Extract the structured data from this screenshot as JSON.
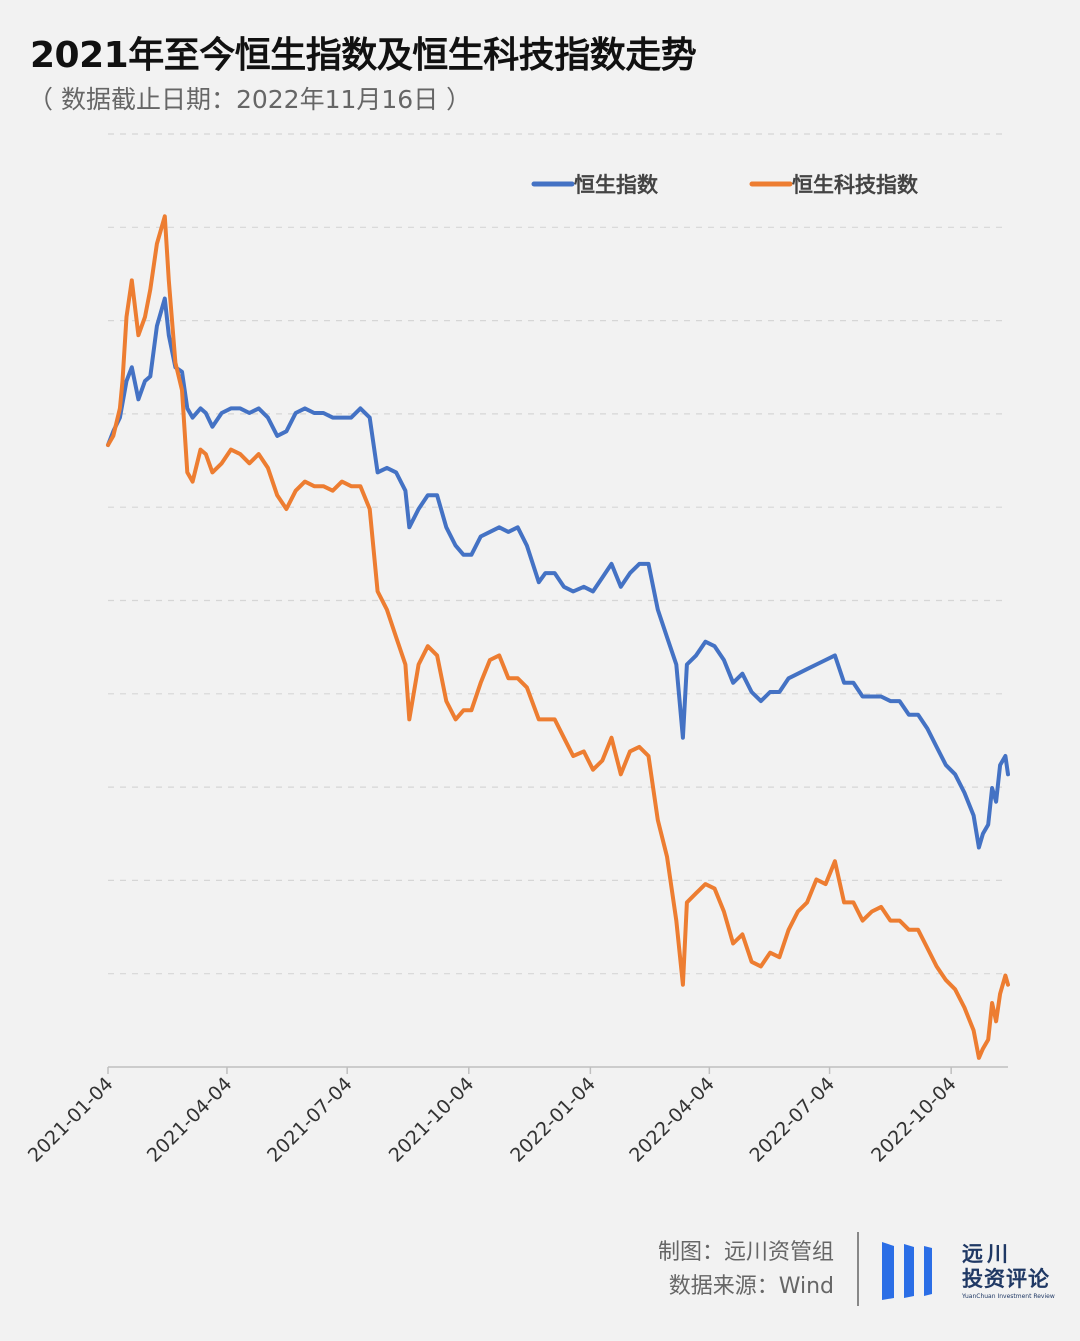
{
  "header": {
    "title": "2021年至今恒生指数及恒生科技指数走势",
    "subtitle": "（ 数据截止日期：2022年11月16日 ）"
  },
  "footer": {
    "maker": "制图：远川资管组",
    "source": "数据来源：Wind"
  },
  "brand": {
    "line1": "远川",
    "line2": "投资评论",
    "line3": "YuanChuan Investment Review",
    "color": "#2b6ee6"
  },
  "chart_data": {
    "type": "line",
    "title": "2021年至今恒生指数及恒生科技指数走势",
    "xlabel": "",
    "ylabel": "",
    "x_range": [
      "2021-01-04",
      "2022-11-16"
    ],
    "x_ticks": [
      "2021-01-04",
      "2021-04-04",
      "2021-07-04",
      "2021-10-04",
      "2022-01-04",
      "2022-04-04",
      "2022-07-04",
      "2022-10-04"
    ],
    "y_range": [
      0.32,
      1.34
    ],
    "y_gridlines": 10,
    "y_axis_labels": "none",
    "grid": "horizontal-dashed",
    "legend": "top-right",
    "series": [
      {
        "name": "恒生指数",
        "color": "#4472c4",
        "points": [
          [
            "2021-01-04",
            1.0
          ],
          [
            "2021-01-08",
            1.015
          ],
          [
            "2021-01-13",
            1.03
          ],
          [
            "2021-01-18",
            1.07
          ],
          [
            "2021-01-22",
            1.085
          ],
          [
            "2021-01-27",
            1.05
          ],
          [
            "2021-02-01",
            1.07
          ],
          [
            "2021-02-05",
            1.075
          ],
          [
            "2021-02-10",
            1.13
          ],
          [
            "2021-02-16",
            1.16
          ],
          [
            "2021-02-19",
            1.12
          ],
          [
            "2021-02-24",
            1.085
          ],
          [
            "2021-03-01",
            1.08
          ],
          [
            "2021-03-05",
            1.04
          ],
          [
            "2021-03-09",
            1.03
          ],
          [
            "2021-03-15",
            1.04
          ],
          [
            "2021-03-19",
            1.035
          ],
          [
            "2021-03-24",
            1.02
          ],
          [
            "2021-03-31",
            1.035
          ],
          [
            "2021-04-07",
            1.04
          ],
          [
            "2021-04-14",
            1.04
          ],
          [
            "2021-04-21",
            1.035
          ],
          [
            "2021-04-28",
            1.04
          ],
          [
            "2021-05-05",
            1.03
          ],
          [
            "2021-05-12",
            1.01
          ],
          [
            "2021-05-19",
            1.015
          ],
          [
            "2021-05-26",
            1.035
          ],
          [
            "2021-06-02",
            1.04
          ],
          [
            "2021-06-09",
            1.035
          ],
          [
            "2021-06-16",
            1.035
          ],
          [
            "2021-06-23",
            1.03
          ],
          [
            "2021-06-30",
            1.03
          ],
          [
            "2021-07-07",
            1.03
          ],
          [
            "2021-07-14",
            1.04
          ],
          [
            "2021-07-21",
            1.03
          ],
          [
            "2021-07-27",
            0.97
          ],
          [
            "2021-08-03",
            0.975
          ],
          [
            "2021-08-10",
            0.97
          ],
          [
            "2021-08-17",
            0.95
          ],
          [
            "2021-08-20",
            0.91
          ],
          [
            "2021-08-27",
            0.93
          ],
          [
            "2021-09-03",
            0.945
          ],
          [
            "2021-09-10",
            0.945
          ],
          [
            "2021-09-17",
            0.91
          ],
          [
            "2021-09-24",
            0.89
          ],
          [
            "2021-09-30",
            0.88
          ],
          [
            "2021-10-06",
            0.88
          ],
          [
            "2021-10-13",
            0.9
          ],
          [
            "2021-10-20",
            0.905
          ],
          [
            "2021-10-27",
            0.91
          ],
          [
            "2021-11-03",
            0.905
          ],
          [
            "2021-11-10",
            0.91
          ],
          [
            "2021-11-17",
            0.89
          ],
          [
            "2021-11-26",
            0.85
          ],
          [
            "2021-12-01",
            0.86
          ],
          [
            "2021-12-08",
            0.86
          ],
          [
            "2021-12-15",
            0.845
          ],
          [
            "2021-12-22",
            0.84
          ],
          [
            "2021-12-30",
            0.845
          ],
          [
            "2022-01-06",
            0.84
          ],
          [
            "2022-01-13",
            0.855
          ],
          [
            "2022-01-20",
            0.87
          ],
          [
            "2022-01-27",
            0.845
          ],
          [
            "2022-02-03",
            0.86
          ],
          [
            "2022-02-10",
            0.87
          ],
          [
            "2022-02-17",
            0.87
          ],
          [
            "2022-02-24",
            0.82
          ],
          [
            "2022-03-03",
            0.79
          ],
          [
            "2022-03-10",
            0.76
          ],
          [
            "2022-03-15",
            0.68
          ],
          [
            "2022-03-18",
            0.76
          ],
          [
            "2022-03-25",
            0.77
          ],
          [
            "2022-04-01",
            0.785
          ],
          [
            "2022-04-08",
            0.78
          ],
          [
            "2022-04-15",
            0.765
          ],
          [
            "2022-04-22",
            0.74
          ],
          [
            "2022-04-29",
            0.75
          ],
          [
            "2022-05-06",
            0.73
          ],
          [
            "2022-05-13",
            0.72
          ],
          [
            "2022-05-20",
            0.73
          ],
          [
            "2022-05-27",
            0.73
          ],
          [
            "2022-06-03",
            0.745
          ],
          [
            "2022-06-10",
            0.75
          ],
          [
            "2022-06-17",
            0.755
          ],
          [
            "2022-06-24",
            0.76
          ],
          [
            "2022-07-01",
            0.765
          ],
          [
            "2022-07-08",
            0.77
          ],
          [
            "2022-07-15",
            0.74
          ],
          [
            "2022-07-22",
            0.74
          ],
          [
            "2022-07-29",
            0.725
          ],
          [
            "2022-08-05",
            0.725
          ],
          [
            "2022-08-12",
            0.725
          ],
          [
            "2022-08-19",
            0.72
          ],
          [
            "2022-08-26",
            0.72
          ],
          [
            "2022-09-02",
            0.705
          ],
          [
            "2022-09-09",
            0.705
          ],
          [
            "2022-09-16",
            0.69
          ],
          [
            "2022-09-23",
            0.67
          ],
          [
            "2022-09-30",
            0.65
          ],
          [
            "2022-10-07",
            0.64
          ],
          [
            "2022-10-14",
            0.62
          ],
          [
            "2022-10-21",
            0.595
          ],
          [
            "2022-10-25",
            0.56
          ],
          [
            "2022-10-28",
            0.575
          ],
          [
            "2022-11-01",
            0.585
          ],
          [
            "2022-11-04",
            0.625
          ],
          [
            "2022-11-07",
            0.61
          ],
          [
            "2022-11-10",
            0.65
          ],
          [
            "2022-11-14",
            0.66
          ],
          [
            "2022-11-16",
            0.64
          ]
        ]
      },
      {
        "name": "恒生科技指数",
        "color": "#ed7d31",
        "points": [
          [
            "2021-01-04",
            1.0
          ],
          [
            "2021-01-08",
            1.01
          ],
          [
            "2021-01-13",
            1.04
          ],
          [
            "2021-01-15",
            1.07
          ],
          [
            "2021-01-18",
            1.14
          ],
          [
            "2021-01-22",
            1.18
          ],
          [
            "2021-01-27",
            1.12
          ],
          [
            "2021-02-01",
            1.14
          ],
          [
            "2021-02-05",
            1.17
          ],
          [
            "2021-02-10",
            1.22
          ],
          [
            "2021-02-16",
            1.25
          ],
          [
            "2021-02-19",
            1.18
          ],
          [
            "2021-02-24",
            1.09
          ],
          [
            "2021-03-01",
            1.06
          ],
          [
            "2021-03-05",
            0.97
          ],
          [
            "2021-03-09",
            0.96
          ],
          [
            "2021-03-15",
            0.995
          ],
          [
            "2021-03-19",
            0.99
          ],
          [
            "2021-03-24",
            0.97
          ],
          [
            "2021-03-31",
            0.98
          ],
          [
            "2021-04-07",
            0.995
          ],
          [
            "2021-04-14",
            0.99
          ],
          [
            "2021-04-21",
            0.98
          ],
          [
            "2021-04-28",
            0.99
          ],
          [
            "2021-05-05",
            0.975
          ],
          [
            "2021-05-12",
            0.945
          ],
          [
            "2021-05-19",
            0.93
          ],
          [
            "2021-05-26",
            0.95
          ],
          [
            "2021-06-02",
            0.96
          ],
          [
            "2021-06-09",
            0.955
          ],
          [
            "2021-06-16",
            0.955
          ],
          [
            "2021-06-23",
            0.95
          ],
          [
            "2021-06-30",
            0.96
          ],
          [
            "2021-07-07",
            0.955
          ],
          [
            "2021-07-14",
            0.955
          ],
          [
            "2021-07-21",
            0.93
          ],
          [
            "2021-07-27",
            0.84
          ],
          [
            "2021-08-03",
            0.82
          ],
          [
            "2021-08-10",
            0.79
          ],
          [
            "2021-08-17",
            0.76
          ],
          [
            "2021-08-20",
            0.7
          ],
          [
            "2021-08-27",
            0.76
          ],
          [
            "2021-09-03",
            0.78
          ],
          [
            "2021-09-10",
            0.77
          ],
          [
            "2021-09-17",
            0.72
          ],
          [
            "2021-09-24",
            0.7
          ],
          [
            "2021-09-30",
            0.71
          ],
          [
            "2021-10-06",
            0.71
          ],
          [
            "2021-10-13",
            0.74
          ],
          [
            "2021-10-20",
            0.765
          ],
          [
            "2021-10-27",
            0.77
          ],
          [
            "2021-11-03",
            0.745
          ],
          [
            "2021-11-10",
            0.745
          ],
          [
            "2021-11-17",
            0.735
          ],
          [
            "2021-11-26",
            0.7
          ],
          [
            "2021-12-01",
            0.7
          ],
          [
            "2021-12-08",
            0.7
          ],
          [
            "2021-12-15",
            0.68
          ],
          [
            "2021-12-22",
            0.66
          ],
          [
            "2021-12-30",
            0.665
          ],
          [
            "2022-01-06",
            0.645
          ],
          [
            "2022-01-13",
            0.655
          ],
          [
            "2022-01-20",
            0.68
          ],
          [
            "2022-01-27",
            0.64
          ],
          [
            "2022-02-03",
            0.665
          ],
          [
            "2022-02-10",
            0.67
          ],
          [
            "2022-02-17",
            0.66
          ],
          [
            "2022-02-24",
            0.59
          ],
          [
            "2022-03-03",
            0.55
          ],
          [
            "2022-03-10",
            0.48
          ],
          [
            "2022-03-15",
            0.41
          ],
          [
            "2022-03-18",
            0.5
          ],
          [
            "2022-03-25",
            0.51
          ],
          [
            "2022-04-01",
            0.52
          ],
          [
            "2022-04-08",
            0.515
          ],
          [
            "2022-04-15",
            0.49
          ],
          [
            "2022-04-22",
            0.455
          ],
          [
            "2022-04-29",
            0.465
          ],
          [
            "2022-05-06",
            0.435
          ],
          [
            "2022-05-13",
            0.43
          ],
          [
            "2022-05-20",
            0.445
          ],
          [
            "2022-05-27",
            0.44
          ],
          [
            "2022-06-03",
            0.47
          ],
          [
            "2022-06-10",
            0.49
          ],
          [
            "2022-06-17",
            0.5
          ],
          [
            "2022-06-24",
            0.525
          ],
          [
            "2022-07-01",
            0.52
          ],
          [
            "2022-07-08",
            0.545
          ],
          [
            "2022-07-15",
            0.5
          ],
          [
            "2022-07-22",
            0.5
          ],
          [
            "2022-07-29",
            0.48
          ],
          [
            "2022-08-05",
            0.49
          ],
          [
            "2022-08-12",
            0.495
          ],
          [
            "2022-08-19",
            0.48
          ],
          [
            "2022-08-26",
            0.48
          ],
          [
            "2022-09-02",
            0.47
          ],
          [
            "2022-09-09",
            0.47
          ],
          [
            "2022-09-16",
            0.45
          ],
          [
            "2022-09-23",
            0.43
          ],
          [
            "2022-09-30",
            0.415
          ],
          [
            "2022-10-07",
            0.405
          ],
          [
            "2022-10-14",
            0.385
          ],
          [
            "2022-10-21",
            0.36
          ],
          [
            "2022-10-25",
            0.33
          ],
          [
            "2022-10-28",
            0.34
          ],
          [
            "2022-11-01",
            0.35
          ],
          [
            "2022-11-04",
            0.39
          ],
          [
            "2022-11-07",
            0.37
          ],
          [
            "2022-11-10",
            0.4
          ],
          [
            "2022-11-14",
            0.42
          ],
          [
            "2022-11-16",
            0.41
          ]
        ]
      }
    ]
  }
}
